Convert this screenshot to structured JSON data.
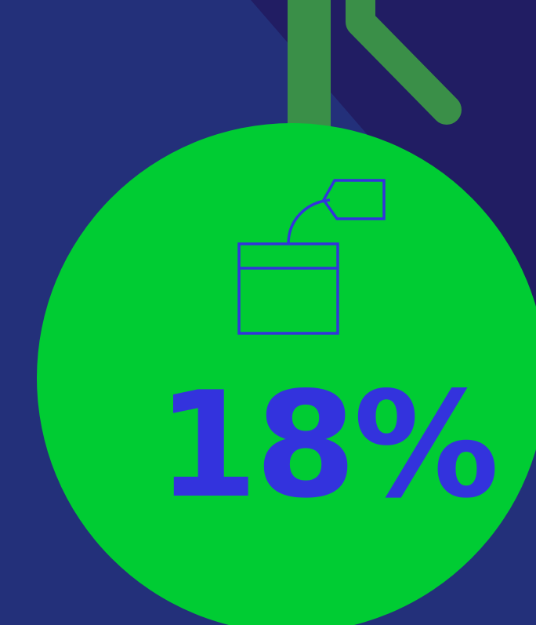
{
  "infographic": {
    "stat_value": "18%",
    "icon": "tea-bag-icon"
  },
  "colors": {
    "background": "#23307a",
    "background_shadow": "#211d63",
    "circle": "#00cc33",
    "branch": "#3a8f48",
    "accent": "#3333dd"
  }
}
